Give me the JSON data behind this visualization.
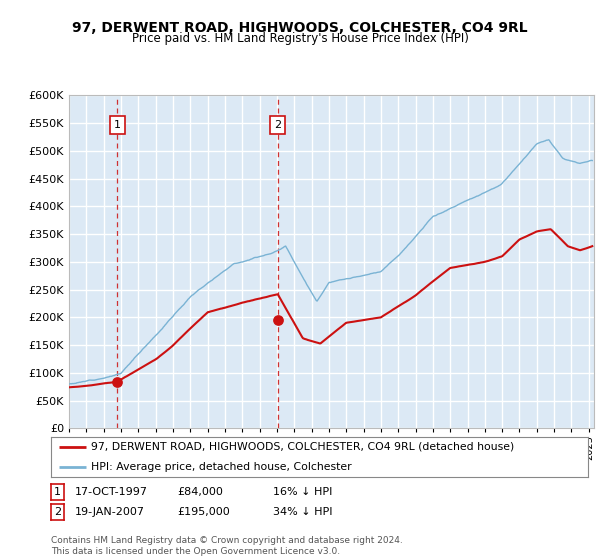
{
  "title": "97, DERWENT ROAD, HIGHWOODS, COLCHESTER, CO4 9RL",
  "subtitle": "Price paid vs. HM Land Registry's House Price Index (HPI)",
  "xlim_start": 1995.0,
  "xlim_end": 2025.3,
  "ylim_bottom": 0,
  "ylim_top": 600000,
  "yticks": [
    0,
    50000,
    100000,
    150000,
    200000,
    250000,
    300000,
    350000,
    400000,
    450000,
    500000,
    550000,
    600000
  ],
  "purchase1_x": 1997.79,
  "purchase1_y": 84000,
  "purchase1_label": "1",
  "purchase1_date": "17-OCT-1997",
  "purchase1_price": "£84,000",
  "purchase1_note": "16% ↓ HPI",
  "purchase2_x": 2007.05,
  "purchase2_y": 195000,
  "purchase2_label": "2",
  "purchase2_date": "19-JAN-2007",
  "purchase2_price": "£195,000",
  "purchase2_note": "34% ↓ HPI",
  "hpi_color": "#7ab3d4",
  "price_color": "#cc1111",
  "vline_color": "#cc1111",
  "background_color": "#dce9f5",
  "grid_color": "#ffffff",
  "legend_label_price": "97, DERWENT ROAD, HIGHWOODS, COLCHESTER, CO4 9RL (detached house)",
  "legend_label_hpi": "HPI: Average price, detached house, Colchester",
  "footer": "Contains HM Land Registry data © Crown copyright and database right 2024.\nThis data is licensed under the Open Government Licence v3.0."
}
